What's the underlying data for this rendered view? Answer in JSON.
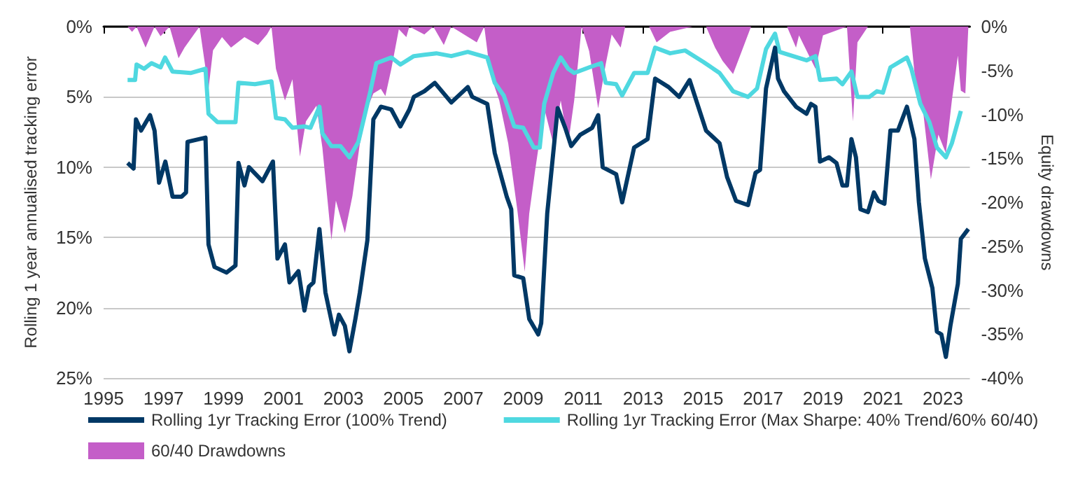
{
  "chart_data": {
    "type": "line",
    "ylabel": "Rolling 1 year annualised tracking error",
    "y2label": "Equity drawdowns",
    "xlim": [
      1995,
      2023.9
    ],
    "xticks": [
      1995,
      1997,
      1999,
      2001,
      2003,
      2005,
      2007,
      2009,
      2011,
      2013,
      2015,
      2017,
      2019,
      2021,
      2023
    ],
    "ylim": [
      25,
      0
    ],
    "yticks": [
      {
        "value": 0,
        "label": "0%"
      },
      {
        "value": 5,
        "label": "5%"
      },
      {
        "value": 10,
        "label": "10%"
      },
      {
        "value": 15,
        "label": "15%"
      },
      {
        "value": 20,
        "label": "20%"
      },
      {
        "value": 25,
        "label": "25%"
      }
    ],
    "y2lim": [
      -40,
      0
    ],
    "y2ticks": [
      {
        "value": 0,
        "label": "0%"
      },
      {
        "value": -5,
        "label": "-5%"
      },
      {
        "value": -10,
        "label": "-10%"
      },
      {
        "value": -15,
        "label": "-15%"
      },
      {
        "value": -20,
        "label": "-20%"
      },
      {
        "value": -25,
        "label": "-25%"
      },
      {
        "value": -30,
        "label": "-30%"
      },
      {
        "value": -35,
        "label": "-35%"
      },
      {
        "value": -40,
        "label": "-40%"
      }
    ],
    "grid": "y",
    "legend": "bottom left",
    "marker": "none",
    "line_style": "solid",
    "series": [
      {
        "name": "60/40 Drawdowns",
        "type": "area",
        "axis": "y2",
        "color": "#c45ec8",
        "x": [
          1995.8,
          1995.95,
          1996.1,
          1996.4,
          1996.7,
          1996.9,
          1997.2,
          1997.5,
          1997.7,
          1998.2,
          1998.5,
          1998.65,
          1998.95,
          1999.25,
          1999.7,
          2000.15,
          2000.45,
          2000.6,
          2000.75,
          2001.05,
          2001.3,
          2001.55,
          2001.75,
          2002.1,
          2002.3,
          2002.6,
          2002.75,
          2003.05,
          2003.3,
          2003.55,
          2003.8,
          2004.0,
          2004.25,
          2004.4,
          2004.6,
          2004.85,
          2005.1,
          2005.2,
          2005.7,
          2006.0,
          2006.35,
          2006.6,
          2007.45,
          2007.7,
          2007.9,
          2008.2,
          2008.5,
          2008.8,
          2009.05,
          2009.2,
          2009.4,
          2009.7,
          2010.0,
          2010.25,
          2010.5,
          2010.7,
          2010.95,
          2011.2,
          2011.5,
          2011.75,
          2011.95,
          2012.25,
          2012.4,
          2013.2,
          2013.45,
          2013.9,
          2014.65,
          2015.1,
          2015.4,
          2015.65,
          2016.0,
          2016.3,
          2016.6,
          2017.8,
          2018.1,
          2018.2,
          2018.75,
          2019.0,
          2019.8,
          2020.0,
          2020.15,
          2020.5,
          2021.9,
          2022.1,
          2022.35,
          2022.6,
          2022.85,
          2023.1,
          2023.3,
          2023.5,
          2023.6,
          2023.75,
          2023.85
        ],
        "values": [
          0,
          -0.6,
          0,
          -2.4,
          0,
          -1.1,
          0,
          -3.6,
          -2.4,
          0,
          -7.1,
          -2.7,
          -1.2,
          -2.4,
          -1.2,
          -2.1,
          -0.9,
          0,
          -4.8,
          -8.4,
          -6.0,
          -14.8,
          -10.8,
          -9.0,
          -13.8,
          -24.3,
          -19.8,
          -23.5,
          -19.3,
          -13.3,
          -9.3,
          -7.6,
          -7.1,
          -7.9,
          -4.8,
          -0.3,
          -1.2,
          0,
          -0.9,
          0,
          -2.1,
          0,
          -1.8,
          0,
          -5.4,
          -8.4,
          -13.3,
          -20.8,
          -27.9,
          -21.3,
          -16.3,
          -9.3,
          -13.3,
          -8.4,
          -13.3,
          -8.4,
          0,
          -2.8,
          -9.3,
          -4.3,
          -0.9,
          -2.4,
          0,
          0,
          -1.8,
          -0.6,
          0,
          0,
          -2.4,
          -3.9,
          -5.4,
          -2.7,
          0,
          0,
          -2.4,
          -1.0,
          -4.8,
          -1.0,
          0,
          -10.8,
          -1.8,
          0,
          0,
          -6.9,
          -9.9,
          -17.4,
          -12.3,
          -14.4,
          -8.4,
          -3.3,
          -7.3,
          -7.6,
          0
        ]
      },
      {
        "name": "Rolling 1yr Tracking Error (Max Sharpe: 40% Trend/60% 60/40)",
        "color": "#4fd8e0",
        "x": [
          1995.8,
          1996.05,
          1996.1,
          1996.35,
          1996.6,
          1996.9,
          1997.05,
          1997.3,
          1997.9,
          1998.4,
          1998.5,
          1998.8,
          1999.4,
          1999.5,
          2000.05,
          2000.6,
          2000.75,
          2001.05,
          2001.3,
          2001.7,
          2001.9,
          2002.2,
          2002.3,
          2002.6,
          2002.9,
          2003.2,
          2003.5,
          2003.9,
          2004.1,
          2004.6,
          2004.9,
          2005.35,
          2005.7,
          2006.1,
          2006.6,
          2007.15,
          2007.8,
          2008.05,
          2008.35,
          2008.7,
          2009.0,
          2009.35,
          2009.55,
          2009.7,
          2010.0,
          2010.25,
          2010.5,
          2010.7,
          2011.2,
          2011.6,
          2011.75,
          2012.1,
          2012.3,
          2012.7,
          2013.15,
          2013.4,
          2013.9,
          2014.4,
          2015.0,
          2015.55,
          2016.0,
          2016.5,
          2016.8,
          2017.1,
          2017.4,
          2017.55,
          2018.15,
          2018.45,
          2018.75,
          2018.9,
          2019.45,
          2019.65,
          2019.95,
          2020.15,
          2020.55,
          2020.8,
          2021.0,
          2021.25,
          2021.8,
          2021.95,
          2022.25,
          2022.55,
          2022.8,
          2023.1,
          2023.3,
          2023.6
        ],
        "values": [
          3.8,
          3.8,
          2.7,
          3.0,
          2.6,
          2.9,
          2.2,
          3.2,
          3.3,
          3.0,
          6.2,
          6.8,
          6.8,
          4.0,
          4.1,
          3.9,
          6.5,
          6.6,
          7.2,
          7.1,
          7.2,
          5.7,
          7.6,
          8.5,
          8.5,
          9.3,
          8.2,
          4.6,
          2.6,
          2.2,
          2.7,
          2.1,
          2.0,
          1.9,
          2.1,
          1.8,
          2.2,
          4.0,
          4.9,
          7.1,
          7.2,
          8.6,
          8.6,
          5.5,
          3.3,
          2.2,
          3.0,
          3.3,
          2.9,
          2.6,
          4.0,
          4.1,
          4.9,
          3.3,
          3.3,
          1.5,
          1.9,
          1.7,
          2.5,
          3.3,
          4.6,
          5.0,
          4.4,
          1.6,
          0.5,
          1.8,
          2.2,
          2.4,
          2.1,
          3.8,
          3.7,
          4.1,
          3.2,
          5.0,
          5.0,
          4.6,
          4.7,
          2.9,
          2.2,
          3.0,
          5.5,
          6.8,
          8.6,
          9.3,
          8.3,
          6.0
        ]
      },
      {
        "name": "Rolling 1yr Tracking Error (100% Trend)",
        "color": "#003865",
        "x": [
          1995.8,
          1996.0,
          1996.08,
          1996.25,
          1996.55,
          1996.7,
          1996.85,
          1997.06,
          1997.3,
          1997.6,
          1997.75,
          1997.8,
          1998.4,
          1998.5,
          1998.7,
          1999.1,
          1999.4,
          1999.5,
          1999.7,
          1999.85,
          2000.3,
          2000.65,
          2000.8,
          2001.05,
          2001.2,
          2001.5,
          2001.7,
          2001.85,
          2002.0,
          2002.2,
          2002.4,
          2002.7,
          2002.85,
          2003.05,
          2003.2,
          2003.4,
          2003.55,
          2003.8,
          2004.0,
          2004.25,
          2004.6,
          2004.9,
          2005.2,
          2005.35,
          2005.7,
          2006.05,
          2006.6,
          2007.15,
          2007.3,
          2007.8,
          2008.05,
          2008.45,
          2008.6,
          2008.7,
          2009.0,
          2009.2,
          2009.5,
          2009.6,
          2009.8,
          2010.15,
          2010.4,
          2010.6,
          2010.9,
          2011.3,
          2011.5,
          2011.65,
          2012.1,
          2012.3,
          2012.7,
          2013.15,
          2013.4,
          2013.85,
          2014.2,
          2014.55,
          2015.1,
          2015.55,
          2015.8,
          2016.1,
          2016.5,
          2016.75,
          2016.9,
          2017.1,
          2017.4,
          2017.5,
          2017.7,
          2018.1,
          2018.45,
          2018.6,
          2018.75,
          2018.9,
          2019.2,
          2019.45,
          2019.65,
          2019.8,
          2019.95,
          2020.1,
          2020.25,
          2020.5,
          2020.7,
          2020.85,
          2021.05,
          2021.25,
          2021.5,
          2021.8,
          2022.05,
          2022.2,
          2022.4,
          2022.65,
          2022.8,
          2022.95,
          2023.1,
          2023.25,
          2023.5,
          2023.6,
          2023.85
        ],
        "values": [
          9.7,
          10.1,
          6.6,
          7.4,
          6.3,
          7.4,
          11.1,
          9.6,
          12.1,
          12.1,
          11.8,
          8.2,
          7.9,
          15.5,
          17.1,
          17.5,
          17.0,
          9.7,
          11.3,
          10.0,
          11.0,
          9.6,
          16.5,
          15.5,
          18.2,
          17.4,
          20.2,
          18.5,
          18.2,
          14.4,
          18.9,
          21.9,
          20.5,
          21.3,
          23.1,
          20.8,
          18.9,
          15.2,
          6.6,
          5.7,
          5.9,
          7.1,
          5.9,
          5.0,
          4.6,
          4.0,
          5.4,
          4.3,
          5.0,
          5.5,
          9.0,
          12.1,
          13.0,
          17.7,
          17.9,
          20.8,
          21.9,
          21.1,
          13.3,
          5.8,
          7.2,
          8.5,
          7.7,
          7.2,
          6.3,
          10.0,
          10.5,
          12.5,
          8.6,
          8.0,
          3.7,
          4.3,
          5.0,
          3.8,
          7.4,
          8.3,
          10.7,
          12.4,
          12.7,
          10.4,
          10.2,
          4.4,
          1.5,
          3.7,
          4.6,
          5.7,
          6.2,
          5.5,
          5.7,
          9.6,
          9.3,
          9.7,
          11.3,
          11.3,
          8.0,
          9.3,
          13.0,
          13.2,
          11.8,
          12.4,
          12.6,
          7.4,
          7.4,
          5.7,
          8.0,
          12.5,
          16.5,
          18.6,
          21.7,
          21.9,
          23.5,
          21.3,
          18.3,
          15.1,
          14.4
        ]
      }
    ]
  }
}
